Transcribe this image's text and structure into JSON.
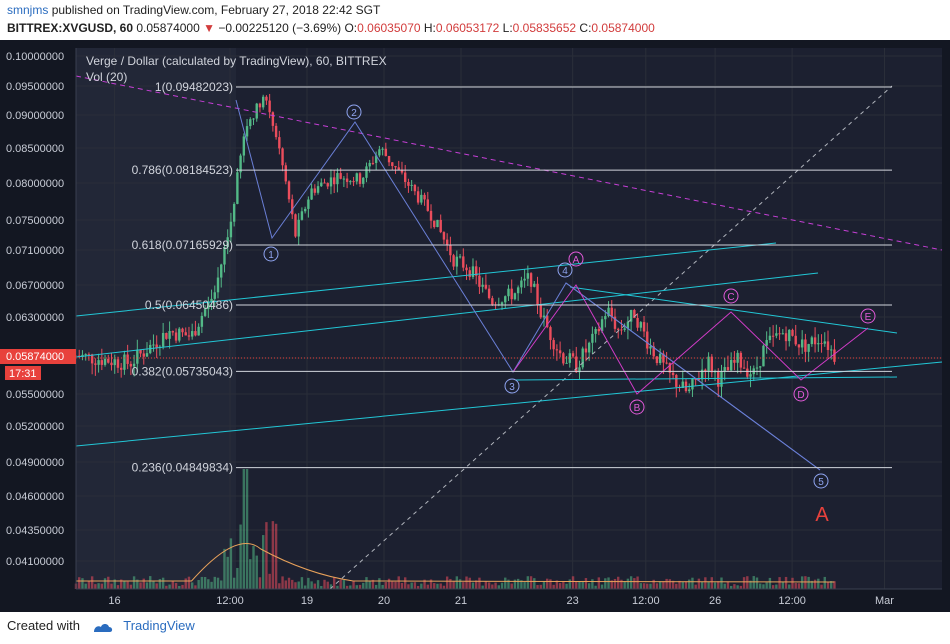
{
  "header": {
    "user": "smnjms",
    "published_text": "published on TradingView.com, February 27, 2018 22:42 SGT",
    "symbol": "BITTREX:XVGUSD, 60",
    "last": "0.05874000",
    "change_arrow": "▼",
    "change": "−0.00225120 (−3.69%)",
    "o_label": "O:",
    "o": "0.06035070",
    "h_label": "H:",
    "h": "0.06053172",
    "l_label": "L:",
    "l": "0.05835652",
    "c_label": "C:",
    "c": "0.05874000"
  },
  "legend": {
    "title": "Verge / Dollar (calculated by TradingView), 60, BITTREX",
    "volume": "Vol (20)"
  },
  "price_badge": {
    "price": "0.05874000",
    "countdown": "17:31"
  },
  "chart_data": {
    "type": "candlestick",
    "title": "Verge / Dollar (calculated by TradingView), 60, BITTREX",
    "y_ticks": [
      "0.10000000",
      "0.09500000",
      "0.09000000",
      "0.08500000",
      "0.08000000",
      "0.07500000",
      "0.07100000",
      "0.06700000",
      "0.06300000",
      "0.05874000",
      "0.05500000",
      "0.05200000",
      "0.04900000",
      "0.04600000",
      "0.04350000",
      "0.04100000"
    ],
    "y_tick_values": [
      0.1,
      0.095,
      0.09,
      0.085,
      0.08,
      0.075,
      0.071,
      0.067,
      0.063,
      0.05874,
      0.055,
      0.052,
      0.049,
      0.046,
      0.0435,
      0.041
    ],
    "x_ticks": [
      "16",
      "12:00",
      "19",
      "20",
      "21",
      "23",
      "12:00",
      "26",
      "12:00",
      "Mar"
    ],
    "x_tick_values": [
      0.5,
      2.0,
      3.0,
      4.0,
      5.0,
      6.45,
      7.4,
      8.3,
      9.3,
      10.5
    ],
    "fibonacci": [
      {
        "label": "1(0.09482023)",
        "value": 0.09482023
      },
      {
        "label": "0.786(0.08184523)",
        "value": 0.08184523
      },
      {
        "label": "0.618(0.07165929)",
        "value": 0.07165929
      },
      {
        "label": "0.5(0.06450486)",
        "value": 0.06450486
      },
      {
        "label": "0.382(0.05735043)",
        "value": 0.05735043
      },
      {
        "label": "0.236(0.04849834)",
        "value": 0.04849834
      }
    ],
    "wave_labels": [
      "1",
      "2",
      "3",
      "4",
      "5",
      "A",
      "B",
      "C",
      "D",
      "E",
      "A"
    ],
    "last_price": 0.05874,
    "colors": {
      "up": "#53b987",
      "down": "#eb4d5c",
      "fib": "#555555",
      "cyan": "#22c7d6",
      "magenta": "#c63fd6",
      "wave": "#6a7fd6",
      "correction": "#d23cc8",
      "red_label": "#e8413c",
      "grid": "#e6e6e6"
    }
  },
  "footer": {
    "created_with": "Created with",
    "brand": "TradingView"
  }
}
